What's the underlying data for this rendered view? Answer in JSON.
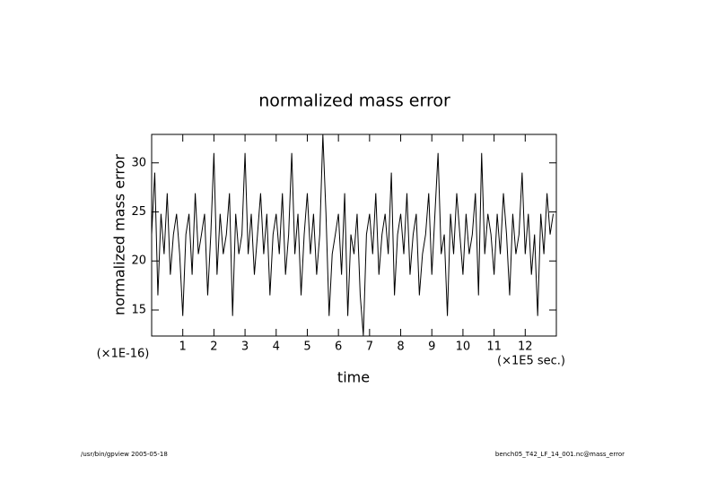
{
  "chart_data": {
    "type": "line",
    "title": "normalized mass error",
    "ylabel": "normalized mass error",
    "xlabel": "time",
    "yunit": "(×1E-16)",
    "xunit": "(×1E5 sec.)",
    "x": [
      0,
      0.1,
      0.2,
      0.3,
      0.4,
      0.5,
      0.6,
      0.7,
      0.8,
      0.9,
      1,
      1.1,
      1.2,
      1.3,
      1.4,
      1.5,
      1.6,
      1.7,
      1.8,
      1.9,
      2,
      2.1,
      2.2,
      2.3,
      2.4,
      2.5,
      2.6,
      2.7,
      2.8,
      2.9,
      3,
      3.1,
      3.2,
      3.3,
      3.4,
      3.5,
      3.6,
      3.7,
      3.8,
      3.9,
      4,
      4.1,
      4.2,
      4.3,
      4.4,
      4.5,
      4.6,
      4.7,
      4.8,
      4.9,
      5,
      5.1,
      5.2,
      5.3,
      5.4,
      5.5,
      5.6,
      5.7,
      5.8,
      5.9,
      6,
      6.1,
      6.2,
      6.3,
      6.4,
      6.5,
      6.6,
      6.7,
      6.8,
      6.9,
      7,
      7.1,
      7.2,
      7.3,
      7.4,
      7.5,
      7.6,
      7.7,
      7.8,
      7.9,
      8,
      8.1,
      8.2,
      8.3,
      8.4,
      8.5,
      8.6,
      8.7,
      8.8,
      8.9,
      9,
      9.1,
      9.2,
      9.3,
      9.4,
      9.5,
      9.6,
      9.7,
      9.8,
      9.9,
      10,
      10.1,
      10.2,
      10.3,
      10.4,
      10.5,
      10.6,
      10.7,
      10.8,
      10.9,
      11,
      11.1,
      11.2,
      11.3,
      11.4,
      11.5,
      11.6,
      11.7,
      11.8,
      11.9,
      12,
      12.1,
      12.2,
      12.3,
      12.4,
      12.5,
      12.6,
      12.7,
      12.8,
      12.9
    ],
    "series": [
      {
        "color": "#000000",
        "values": [
          22.7,
          29.0,
          16.5,
          24.8,
          20.7,
          26.9,
          18.6,
          22.7,
          24.8,
          20.7,
          14.4,
          22.7,
          24.8,
          18.6,
          26.9,
          20.7,
          22.7,
          24.8,
          16.5,
          22.7,
          31.0,
          18.6,
          24.8,
          20.7,
          22.7,
          26.9,
          14.4,
          24.8,
          20.7,
          22.7,
          31.0,
          20.7,
          24.8,
          18.6,
          22.7,
          26.9,
          20.7,
          24.8,
          16.5,
          22.7,
          24.8,
          20.7,
          26.9,
          18.6,
          22.7,
          31.0,
          20.7,
          24.8,
          16.5,
          22.7,
          26.9,
          20.7,
          24.8,
          18.6,
          22.7,
          32.9,
          24.8,
          14.4,
          20.7,
          22.7,
          24.8,
          18.6,
          26.9,
          14.4,
          22.7,
          20.7,
          24.8,
          16.5,
          12.4,
          22.7,
          24.8,
          20.7,
          26.9,
          18.6,
          22.7,
          24.8,
          20.7,
          29.0,
          16.5,
          22.7,
          24.8,
          20.7,
          26.9,
          18.6,
          22.7,
          24.8,
          16.5,
          20.7,
          22.7,
          26.9,
          18.6,
          24.8,
          31.0,
          20.7,
          22.7,
          14.4,
          24.8,
          20.7,
          26.9,
          22.7,
          18.6,
          24.8,
          20.7,
          22.7,
          26.9,
          16.5,
          31.0,
          20.7,
          24.8,
          22.7,
          18.6,
          24.8,
          20.7,
          26.9,
          22.7,
          16.5,
          24.8,
          20.7,
          22.7,
          29.0,
          20.7,
          24.8,
          18.6,
          22.7,
          14.4,
          24.8,
          20.7,
          26.9,
          22.7,
          24.8
        ]
      }
    ],
    "xlim": [
      0,
      13
    ],
    "ylim": [
      12.35,
      32.9
    ],
    "xticks": [
      1,
      2,
      3,
      4,
      5,
      6,
      7,
      8,
      9,
      10,
      11,
      12
    ],
    "yticks": [
      15,
      20,
      25,
      30
    ],
    "footer_left": "/usr/bin/gpview  2005-05-18",
    "footer_right": "bench05_T42_LF_14_001.nc@mass_error"
  }
}
